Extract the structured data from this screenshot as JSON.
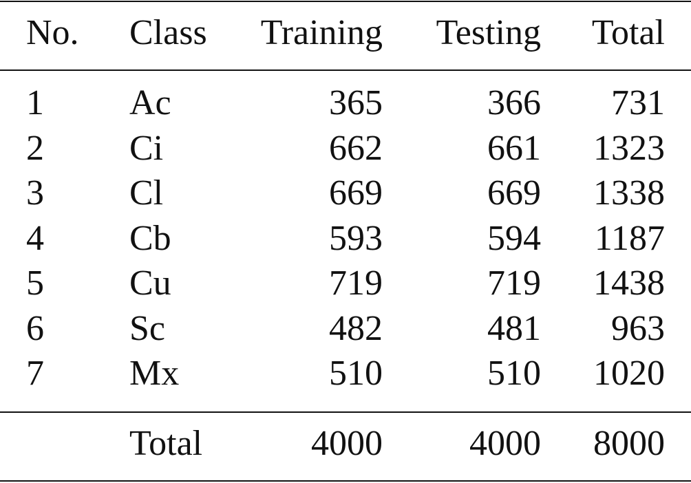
{
  "table": {
    "columns": [
      "No.",
      "Class",
      "Training",
      "Testing",
      "Total"
    ],
    "rows": [
      [
        1,
        "Ac",
        365,
        366,
        731
      ],
      [
        2,
        "Ci",
        662,
        661,
        1323
      ],
      [
        3,
        "Cl",
        669,
        669,
        1338
      ],
      [
        4,
        "Cb",
        593,
        594,
        1187
      ],
      [
        5,
        "Cu",
        719,
        719,
        1438
      ],
      [
        6,
        "Sc",
        482,
        481,
        963
      ],
      [
        7,
        "Mx",
        510,
        510,
        1020
      ]
    ],
    "footer": {
      "label": "Total",
      "values": [
        4000,
        4000,
        8000
      ]
    }
  }
}
